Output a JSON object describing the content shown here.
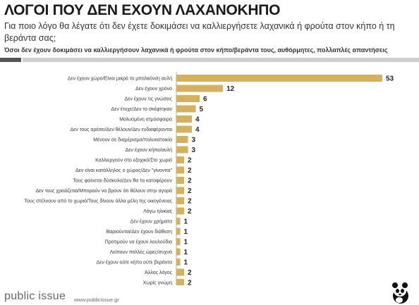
{
  "header": {
    "title": "ΛΟΓΟΙ ΠΟΥ ΔΕΝ ΕΧΟΥΝ ΛΑΧΑΝΟΚΗΠΟ",
    "question": "Για ποιο λόγο θα λέγατε ότι δεν έχετε δοκιμάσει να καλλιεργήσετε λαχανικά ή φρούτα στον κήπο ή τη βεράντα σας;",
    "subtitle": "Όσοι δεν έχουν δοκιμάσει να καλλιεργήσουν λαχανικά ή φρούτα στον κήπο/βεράντα τους, αυθόρμητες, πολλαπλές απαντήσεις"
  },
  "footer": {
    "logo": "public issue",
    "url": "www.publicissue.gr"
  },
  "colors": {
    "bar": "#d4b15f",
    "text": "#333333",
    "rule_dark": "#555555",
    "rule_light": "#cfcfcf"
  },
  "icons": {
    "brand": "panda-icon"
  },
  "chart_data": {
    "type": "bar",
    "orientation": "horizontal",
    "categories": [
      "Δεν έχουν χώρο/Είναι μικρό το μπαλκόνι/η αυλή",
      "Δεν έχουν χρόνο",
      "Δεν έχουν τις γνώσεις",
      "Δεν έτυχε/Δεν το σκέφτηκαν",
      "Μολυσμένη ατμόσφαιρα",
      "Δεν τους αρέσει/Δεν θέλουν/Δεν ενδιαφέρονται",
      "Μένουν σε διαμέρισμα/πολυκατοικία",
      "Δεν έχουν κήπο/αυλή",
      "Καλλιεργούν στο εξοχικό/Στο χωριό",
      "Δεν είναι κατάλληλος ο χώρος/Δεν \"γίνονται\"",
      "Τους φαίνεται δύσκολο/Δεν θα τα καταφέρουν",
      "Δεν τους χρειάζεται/Μπορούν να βρουν ότι θέλουν στην αγορά",
      "Τους στέλνουν από το χωριό/Τους δίνουν άλλα μέλη της οικογένειας",
      "Λόγω ηλικίας",
      "Δεν έχουν χρήματα",
      "Βαριούνται/Δεν έχουν διάθεση",
      "Προτιμούν να έχουν λουλούδια",
      "Λείπουν πολλές ώρες/συχνά",
      "Δεν έχουν ούτε κήπο ούτε βεράντα",
      "Άλλος λόγος",
      "Χωρίς γνώμη"
    ],
    "values": [
      53,
      12,
      6,
      5,
      4,
      4,
      3,
      3,
      2,
      2,
      2,
      2,
      2,
      2,
      1,
      1,
      1,
      1,
      1,
      2,
      2
    ],
    "xlim": [
      0,
      53
    ],
    "grid": false,
    "legend": "none"
  }
}
